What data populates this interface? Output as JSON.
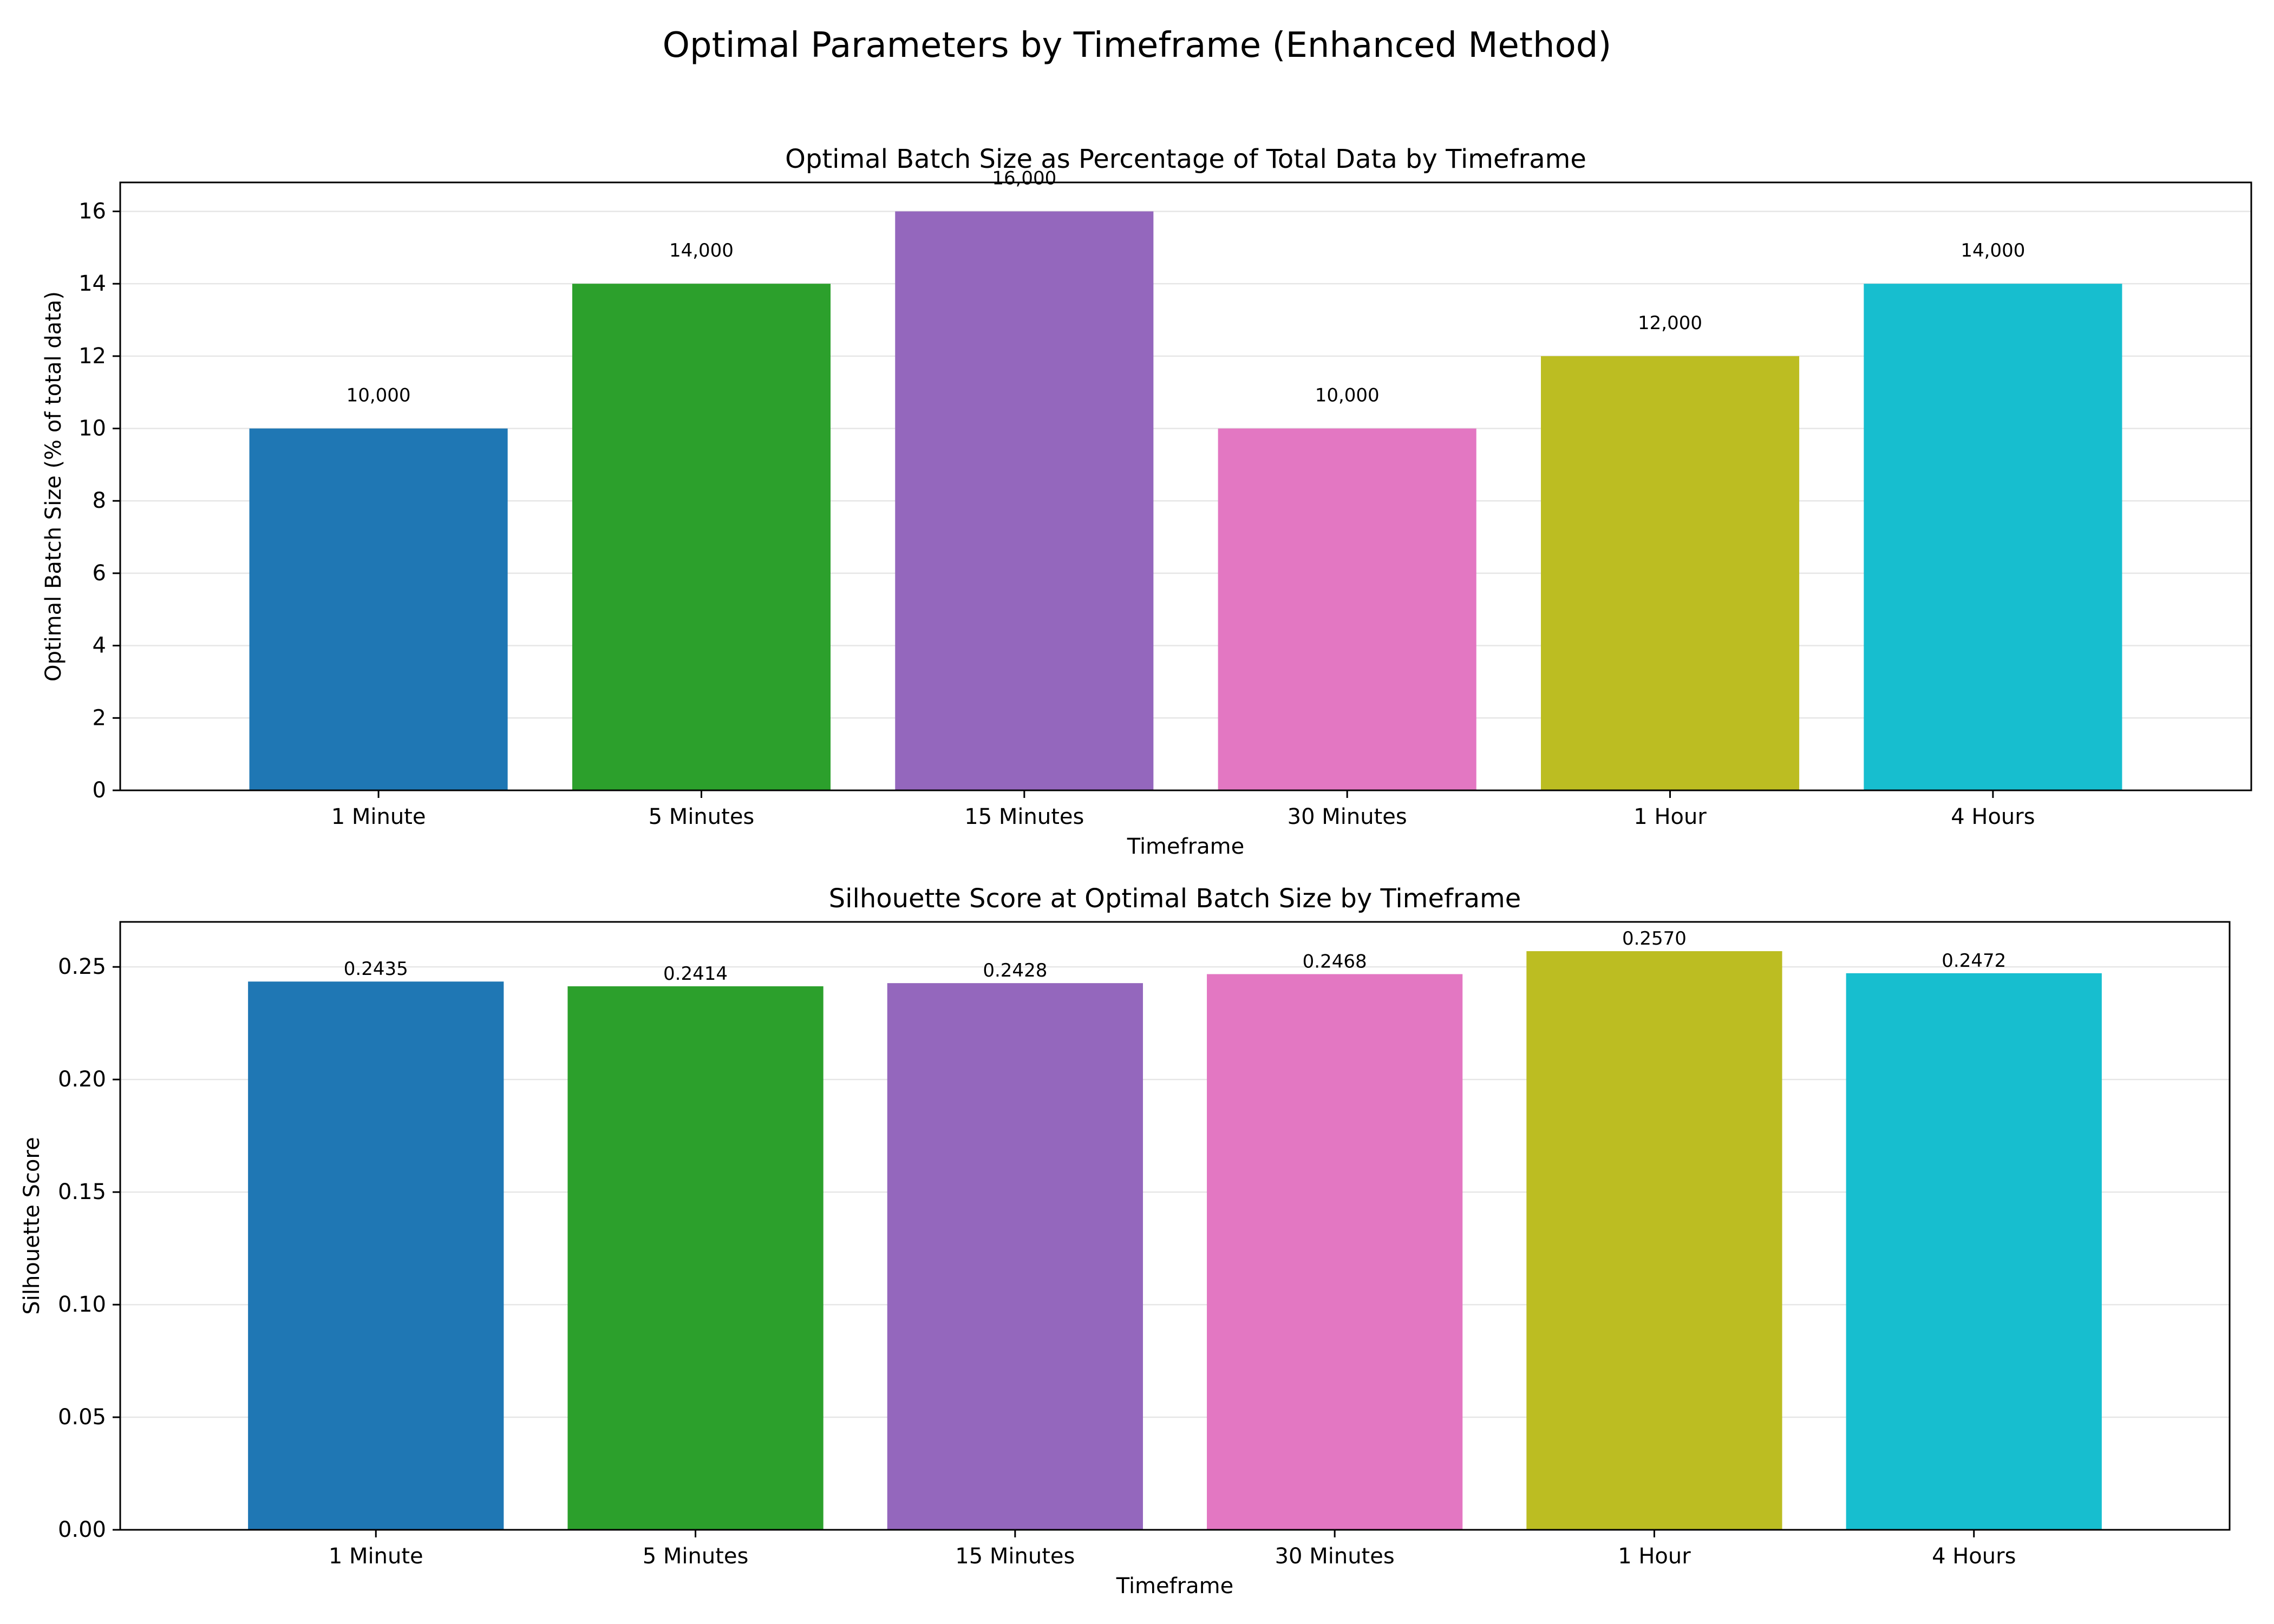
{
  "figure": {
    "title": "Optimal Parameters by Timeframe (Enhanced Method)"
  },
  "chart_data": [
    {
      "type": "bar",
      "title": "Optimal Batch Size as Percentage of Total Data by Timeframe",
      "xlabel": "Timeframe",
      "ylabel": "Optimal Batch Size (% of total data)",
      "categories": [
        "1 Minute",
        "5 Minutes",
        "15 Minutes",
        "30 Minutes",
        "1 Hour",
        "4 Hours"
      ],
      "values": [
        10,
        14,
        16,
        10,
        12,
        14
      ],
      "data_labels": [
        "10,000",
        "14,000",
        "16,000",
        "10,000",
        "12,000",
        "14,000"
      ],
      "ylim": [
        0,
        16.8
      ],
      "yticks": [
        0,
        2,
        4,
        6,
        8,
        10,
        12,
        14,
        16
      ],
      "ytick_labels": [
        "0",
        "2",
        "4",
        "6",
        "8",
        "10",
        "12",
        "14",
        "16"
      ],
      "colors": [
        "#1f77b4",
        "#2ca02c",
        "#9467bd",
        "#e377c2",
        "#bcbd22",
        "#17becf"
      ],
      "grid": "y",
      "legend": "none"
    },
    {
      "type": "bar",
      "title": "Silhouette Score at Optimal Batch Size by Timeframe",
      "xlabel": "Timeframe",
      "ylabel": "Silhouette Score",
      "categories": [
        "1 Minute",
        "5 Minutes",
        "15 Minutes",
        "30 Minutes",
        "1 Hour",
        "4 Hours"
      ],
      "values": [
        0.2435,
        0.2414,
        0.2428,
        0.2468,
        0.257,
        0.2472
      ],
      "data_labels": [
        "0.2435",
        "0.2414",
        "0.2428",
        "0.2468",
        "0.2570",
        "0.2472"
      ],
      "ylim": [
        0,
        0.27
      ],
      "yticks": [
        0,
        0.05,
        0.1,
        0.15,
        0.2,
        0.25
      ],
      "ytick_labels": [
        "0.00",
        "0.05",
        "0.10",
        "0.15",
        "0.20",
        "0.25"
      ],
      "colors": [
        "#1f77b4",
        "#2ca02c",
        "#9467bd",
        "#e377c2",
        "#bcbd22",
        "#17becf"
      ],
      "grid": "y",
      "legend": "none"
    }
  ]
}
